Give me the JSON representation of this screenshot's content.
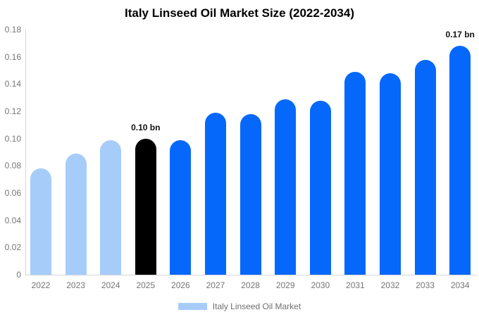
{
  "chart_data": {
    "type": "bar",
    "title": "Italy Linseed Oil Market Size (2022-2034)",
    "categories": [
      "2022",
      "2023",
      "2024",
      "2025",
      "2026",
      "2027",
      "2028",
      "2029",
      "2030",
      "2031",
      "2032",
      "2033",
      "2034"
    ],
    "values": [
      0.078,
      0.089,
      0.099,
      0.1,
      0.099,
      0.119,
      0.118,
      0.129,
      0.128,
      0.149,
      0.148,
      0.158,
      0.168
    ],
    "bar_roles": [
      "historical",
      "historical",
      "historical",
      "highlight",
      "forecast",
      "forecast",
      "forecast",
      "forecast",
      "forecast",
      "forecast",
      "forecast",
      "forecast",
      "forecast"
    ],
    "y_tick_labels": [
      "0",
      "0.02",
      "0.04",
      "0.06",
      "0.08",
      "0.10",
      "0.12",
      "0.14",
      "0.16",
      "0.18"
    ],
    "ylim": [
      0,
      0.18
    ],
    "grid": false,
    "legend_position": "bottom",
    "annotations": [
      {
        "category": "2025",
        "text": "0.10 bn"
      },
      {
        "category": "2034",
        "text": "0.17 bn"
      }
    ],
    "legend": {
      "label": "Italy Linseed Oil Market"
    }
  },
  "colors": {
    "historical": "#a6cdfa",
    "highlight": "#000000",
    "forecast": "#0668fb",
    "legend_swatch": "#a6cdfa",
    "axis_line": "#d6d6d6",
    "tick_text": "#757575",
    "annotation_text": "#111111",
    "title_text": "#000000"
  }
}
